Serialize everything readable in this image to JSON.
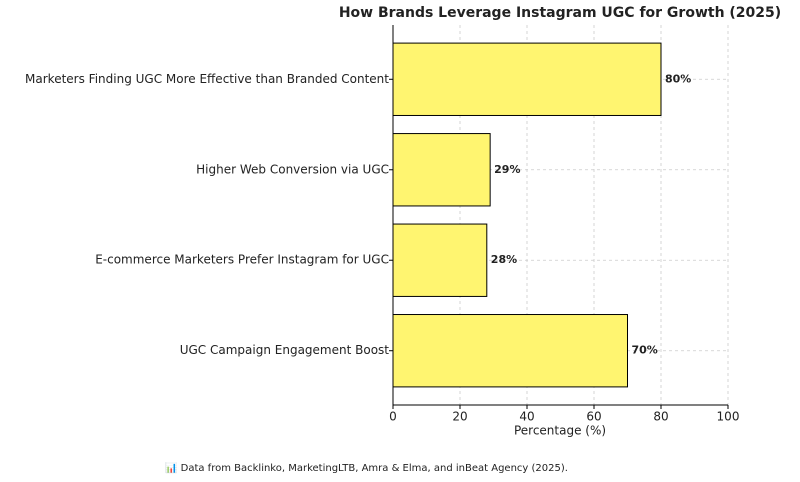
{
  "chart_data": {
    "type": "barh",
    "title": "How Brands Leverage Instagram UGC for Growth (2025)",
    "categories": [
      "Marketers Finding UGC More Effective than Branded Content",
      "Higher Web Conversion via UGC",
      "E-commerce Marketers Prefer Instagram for UGC",
      "UGC Campaign Engagement Boost"
    ],
    "values": [
      80,
      29,
      28,
      70
    ],
    "value_labels": [
      "80%",
      "29%",
      "28%",
      "70%"
    ],
    "color": "#fff570",
    "edge_color": "#000000",
    "xlabel": "Percentage (%)",
    "xlim": [
      0,
      100
    ],
    "xticks": [
      0,
      20,
      40,
      60,
      80,
      100
    ],
    "grid": true,
    "footnote": "📊 Data from Backlinko, MarketingLTB, Amra & Elma, and inBeat Agency (2025)."
  }
}
